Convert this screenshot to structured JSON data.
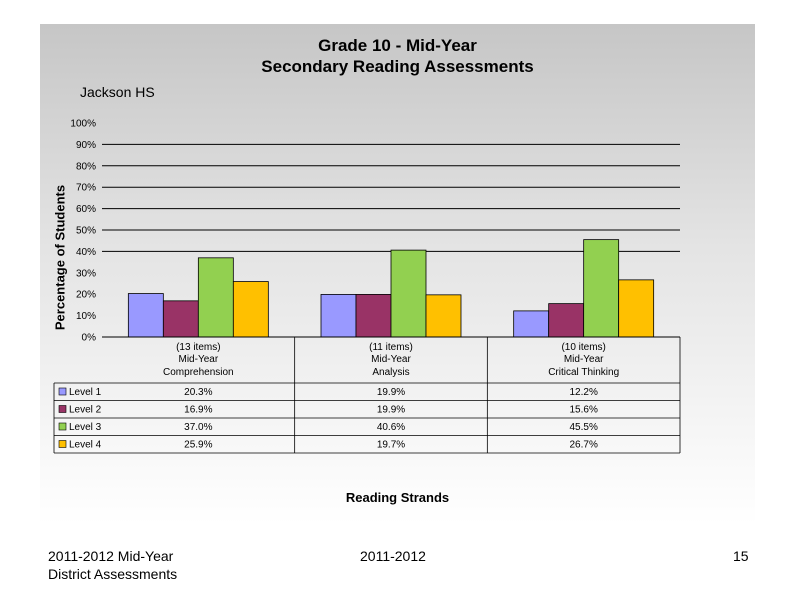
{
  "chart_data": {
    "type": "bar",
    "title": "Grade 10 - Mid-Year",
    "subtitle": "Secondary Reading Assessments",
    "school": "Jackson HS",
    "ylabel": "Percentage of Students",
    "xlabel": "Reading Strands",
    "ylim": [
      0,
      100
    ],
    "yticks": [
      "0%",
      "10%",
      "20%",
      "30%",
      "40%",
      "50%",
      "60%",
      "70%",
      "80%",
      "90%",
      "100%"
    ],
    "categories": [
      {
        "items": "(13 items)",
        "period": "Mid-Year",
        "name": "Comprehension"
      },
      {
        "items": "(11 items)",
        "period": "Mid-Year",
        "name": "Analysis"
      },
      {
        "items": "(10 items)",
        "period": "Mid-Year",
        "name": "Critical Thinking"
      }
    ],
    "series": [
      {
        "name": "Level 1",
        "color": "#9999ff",
        "values": [
          20.3,
          19.9,
          12.2
        ],
        "labels": [
          "20.3%",
          "19.9%",
          "12.2%"
        ]
      },
      {
        "name": "Level 2",
        "color": "#993366",
        "values": [
          16.9,
          19.9,
          15.6
        ],
        "labels": [
          "16.9%",
          "19.9%",
          "15.6%"
        ]
      },
      {
        "name": "Level 3",
        "color": "#92d050",
        "values": [
          37.0,
          40.6,
          45.5
        ],
        "labels": [
          "37.0%",
          "40.6%",
          "45.5%"
        ]
      },
      {
        "name": "Level 4",
        "color": "#ffc000",
        "values": [
          25.9,
          19.7,
          26.7
        ],
        "labels": [
          "25.9%",
          "19.7%",
          "26.7%"
        ]
      }
    ]
  },
  "footer": {
    "left_line1": "2011-2012  Mid-Year",
    "left_line2": "District Assessments",
    "center": "2011-2012",
    "page": "15"
  }
}
